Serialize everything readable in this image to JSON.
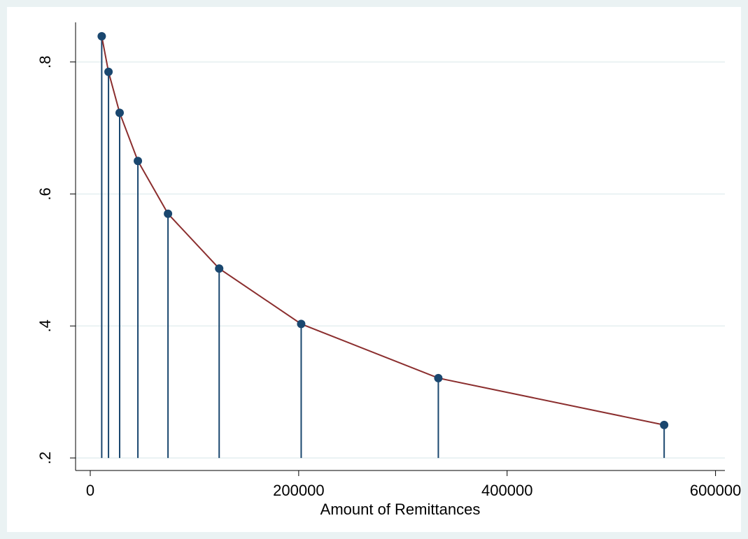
{
  "chart_data": {
    "type": "line",
    "x_label": "Amount of Remittances",
    "x": [
      11000,
      17500,
      28200,
      45700,
      74600,
      123700,
      202400,
      334000,
      550700
    ],
    "values": [
      0.839,
      0.785,
      0.723,
      0.65,
      0.57,
      0.487,
      0.403,
      0.321,
      0.25
    ],
    "line_color": "#8b2e2e",
    "marker_color": "#1a476f",
    "markers": true,
    "spikes": true,
    "xlim": [
      -14100,
      609000
    ],
    "ylim": [
      0.181,
      0.86
    ],
    "xticks": [
      0,
      200000,
      400000,
      600000
    ],
    "yticks": [
      {
        "value": 0.2,
        "label": ".2"
      },
      {
        "value": 0.4,
        "label": ".4"
      },
      {
        "value": 0.6,
        "label": ".6"
      },
      {
        "value": 0.8,
        "label": ".8"
      }
    ],
    "grid": true,
    "grid_color": "#eaf2f3"
  }
}
